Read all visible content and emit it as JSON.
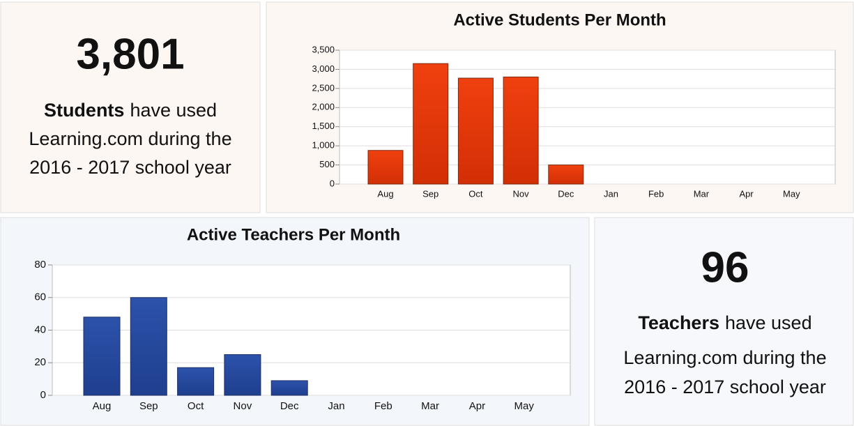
{
  "chart_data": [
    {
      "type": "bar",
      "title": "Active Students Per Month",
      "categories": [
        "Aug",
        "Sep",
        "Oct",
        "Nov",
        "Dec",
        "Jan",
        "Feb",
        "Mar",
        "Apr",
        "May"
      ],
      "values": [
        880,
        3150,
        2770,
        2800,
        500,
        0,
        0,
        0,
        0,
        0
      ],
      "color": "#f0400f",
      "ylim": [
        0,
        3500
      ],
      "yticks": [
        0,
        500,
        {
          "value": 1000,
          "label": "1,000"
        },
        {
          "value": 1500,
          "label": "1,500"
        },
        {
          "value": 2000,
          "label": "2,000"
        },
        {
          "value": 2500,
          "label": "2,500"
        },
        {
          "value": 3000,
          "label": "3,000"
        },
        {
          "value": 3500,
          "label": "3,500"
        }
      ],
      "grid": true
    },
    {
      "type": "bar",
      "title": "Active Teachers Per Month",
      "categories": [
        "Aug",
        "Sep",
        "Oct",
        "Nov",
        "Dec",
        "Jan",
        "Feb",
        "Mar",
        "Apr",
        "May"
      ],
      "values": [
        48,
        60,
        17,
        25,
        9,
        0,
        0,
        0,
        0,
        0
      ],
      "color": "#2c52aa",
      "ylim": [
        0,
        80
      ],
      "yticks": [
        0,
        20,
        40,
        60,
        80
      ],
      "grid": true
    }
  ],
  "stats": [
    {
      "number": "3,801",
      "lead": "Students",
      "lines": [
        "have used",
        "Learning.com during the",
        "2016 - 2017 school year"
      ]
    },
    {
      "number": "96",
      "lead": "Teachers",
      "lines": [
        "have used",
        "Learning.com during the",
        "2016 - 2017 school year"
      ]
    }
  ]
}
